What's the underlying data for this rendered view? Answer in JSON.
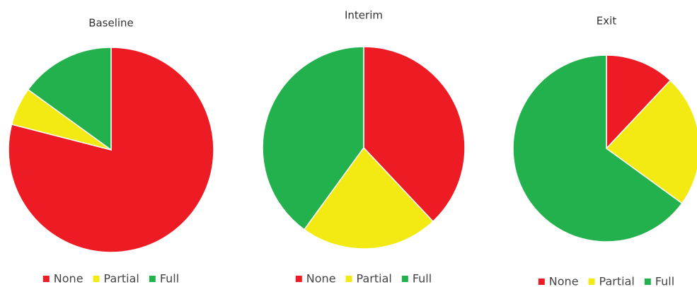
{
  "chart_data": [
    {
      "type": "pie",
      "title": "Baseline",
      "categories": [
        "None",
        "Partial",
        "Full"
      ],
      "values": [
        79,
        6,
        15
      ],
      "colors": [
        "#ed1c24",
        "#f2ea12",
        "#22b14c"
      ],
      "legend": "bottom"
    },
    {
      "type": "pie",
      "title": "Interim",
      "categories": [
        "None",
        "Partial",
        "Full"
      ],
      "values": [
        38,
        22,
        40
      ],
      "colors": [
        "#ed1c24",
        "#f2ea12",
        "#22b14c"
      ],
      "legend": "bottom"
    },
    {
      "type": "pie",
      "title": "Exit",
      "categories": [
        "None",
        "Partial",
        "Full"
      ],
      "values": [
        12,
        23,
        65
      ],
      "colors": [
        "#ed1c24",
        "#f2ea12",
        "#22b14c"
      ],
      "legend": "bottom"
    }
  ]
}
